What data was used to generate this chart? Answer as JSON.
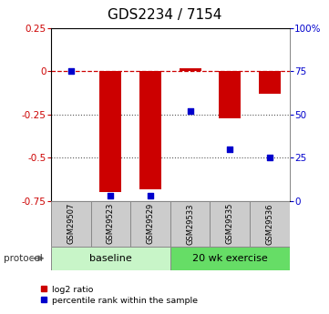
{
  "title": "GDS2234 / 7154",
  "samples": [
    "GSM29507",
    "GSM29523",
    "GSM29529",
    "GSM29533",
    "GSM29535",
    "GSM29536"
  ],
  "log2_ratio": [
    0.0,
    -0.7,
    -0.68,
    0.02,
    -0.27,
    -0.13
  ],
  "percentile_rank": [
    75,
    3,
    3,
    52,
    30,
    25
  ],
  "ylim_left": [
    -0.75,
    0.25
  ],
  "ylim_right": [
    0,
    100
  ],
  "groups": [
    {
      "label": "baseline",
      "color": "#c8f5c8"
    },
    {
      "label": "20 wk exercise",
      "color": "#66dd66"
    }
  ],
  "protocol_label": "protocol",
  "bar_color": "#cc0000",
  "dot_color": "#0000cc",
  "dashed_line_color": "#cc0000",
  "dotted_line_color": "#555555",
  "bg_color": "#ffffff",
  "plot_bg": "#ffffff",
  "left_tick_color": "#cc0000",
  "right_tick_color": "#0000cc",
  "left_ticks": [
    0.25,
    0.0,
    -0.25,
    -0.5,
    -0.75
  ],
  "left_tick_labels": [
    "0.25",
    "0",
    "-0.25",
    "-0.5",
    "-0.75"
  ],
  "right_ticks": [
    100,
    75,
    50,
    25,
    0
  ],
  "right_tick_labels": [
    "100%",
    "75",
    "50",
    "25",
    "0"
  ],
  "title_fontsize": 11
}
